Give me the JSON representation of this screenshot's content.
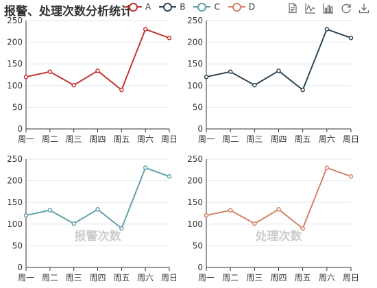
{
  "title": "报警、处理次数分析统计",
  "legend": [
    {
      "name": "A",
      "color": "#c23531"
    },
    {
      "name": "B",
      "color": "#2f4554"
    },
    {
      "name": "C",
      "color": "#61a0a8"
    },
    {
      "name": "D",
      "color": "#d48265"
    }
  ],
  "toolbox": [
    {
      "name": "data-view-icon"
    },
    {
      "name": "line-chart-icon"
    },
    {
      "name": "bar-chart-icon"
    },
    {
      "name": "restore-icon"
    },
    {
      "name": "save-image-icon"
    }
  ],
  "chart_data": [
    {
      "type": "line",
      "series_name": "A",
      "color": "#c23531",
      "categories": [
        "周一",
        "周二",
        "周三",
        "周四",
        "周五",
        "周六",
        "周日"
      ],
      "values": [
        120,
        132,
        101,
        134,
        90,
        230,
        210
      ],
      "ylim": [
        0,
        250
      ],
      "yticks": [
        0,
        50,
        100,
        150,
        200,
        250
      ],
      "watermark": ""
    },
    {
      "type": "line",
      "series_name": "B",
      "color": "#2f4554",
      "categories": [
        "周一",
        "周二",
        "周三",
        "周四",
        "周五",
        "周六",
        "周日"
      ],
      "values": [
        120,
        132,
        101,
        134,
        90,
        230,
        210
      ],
      "ylim": [
        0,
        250
      ],
      "yticks": [
        0,
        50,
        100,
        150,
        200,
        250
      ],
      "watermark": ""
    },
    {
      "type": "line",
      "series_name": "C",
      "color": "#61a0a8",
      "categories": [
        "周一",
        "周二",
        "周三",
        "周四",
        "周五",
        "周六",
        "周日"
      ],
      "values": [
        120,
        132,
        101,
        134,
        90,
        230,
        210
      ],
      "ylim": [
        0,
        250
      ],
      "yticks": [
        0,
        50,
        100,
        150,
        200,
        250
      ],
      "watermark": "报警次数"
    },
    {
      "type": "line",
      "series_name": "D",
      "color": "#d48265",
      "categories": [
        "周一",
        "周二",
        "周三",
        "周四",
        "周五",
        "周六",
        "周日"
      ],
      "values": [
        120,
        132,
        101,
        134,
        90,
        230,
        210
      ],
      "ylim": [
        0,
        250
      ],
      "yticks": [
        0,
        50,
        100,
        150,
        200,
        250
      ],
      "watermark": "处理次数"
    }
  ]
}
